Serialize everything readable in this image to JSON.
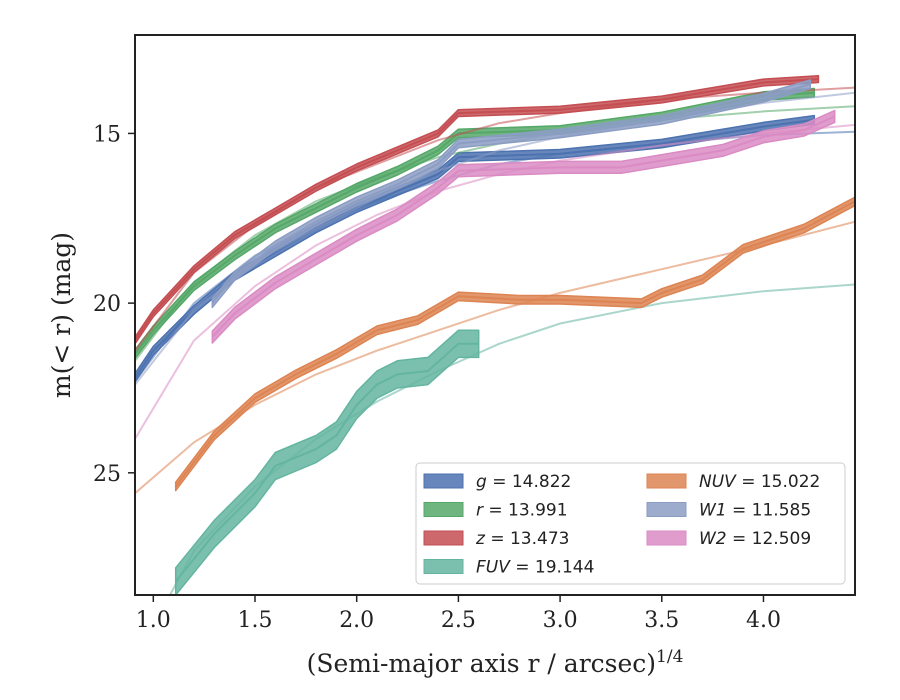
{
  "chart_data": {
    "type": "line",
    "title": "",
    "xlabel": "(Semi-major axis r / arcsec)",
    "xlabel_sup": "1/4",
    "ylabel": "m(< r) (mag)",
    "xlim": [
      0.91,
      4.45
    ],
    "ylim": [
      28.6,
      12.1
    ],
    "y_inverted": true,
    "x_ticks": [
      "1.0",
      "1.5",
      "2.0",
      "2.5",
      "3.0",
      "3.5",
      "4.0"
    ],
    "y_ticks": [
      "15",
      "20",
      "25"
    ],
    "grid": false,
    "legend_position": "lower-right",
    "legend_columns": 2,
    "series": [
      {
        "name": "g = 14.822",
        "band": "g",
        "value": "14.822",
        "color": "#4c72b0",
        "band_width": 0.25,
        "data": [
          [
            0.91,
            22.2
          ],
          [
            1.0,
            21.4
          ],
          [
            1.2,
            20.2
          ],
          [
            1.4,
            19.2
          ],
          [
            1.6,
            18.5
          ],
          [
            1.8,
            17.8
          ],
          [
            2.0,
            17.2
          ],
          [
            2.2,
            16.7
          ],
          [
            2.4,
            16.2
          ],
          [
            2.5,
            15.7
          ],
          [
            3.0,
            15.6
          ],
          [
            3.5,
            15.3
          ],
          [
            4.0,
            14.8
          ],
          [
            4.25,
            14.6
          ]
        ],
        "model": [
          [
            0.91,
            22.3
          ],
          [
            1.2,
            20.0
          ],
          [
            1.5,
            18.6
          ],
          [
            1.8,
            17.7
          ],
          [
            2.1,
            17.0
          ],
          [
            2.4,
            16.4
          ],
          [
            2.7,
            15.9
          ],
          [
            3.0,
            15.6
          ],
          [
            3.5,
            15.3
          ],
          [
            4.0,
            15.05
          ],
          [
            4.45,
            14.95
          ]
        ]
      },
      {
        "name": "r = 13.991",
        "band": "r",
        "value": "13.991",
        "color": "#55a868",
        "band_width": 0.25,
        "data": [
          [
            0.91,
            21.5
          ],
          [
            1.0,
            20.8
          ],
          [
            1.2,
            19.5
          ],
          [
            1.4,
            18.6
          ],
          [
            1.6,
            17.8
          ],
          [
            1.8,
            17.2
          ],
          [
            2.0,
            16.6
          ],
          [
            2.2,
            16.1
          ],
          [
            2.4,
            15.5
          ],
          [
            2.5,
            15.0
          ],
          [
            3.0,
            14.9
          ],
          [
            3.5,
            14.5
          ],
          [
            4.0,
            13.9
          ],
          [
            4.25,
            13.8
          ]
        ],
        "model": [
          [
            0.91,
            21.7
          ],
          [
            1.2,
            19.4
          ],
          [
            1.5,
            18.0
          ],
          [
            1.8,
            17.0
          ],
          [
            2.1,
            16.3
          ],
          [
            2.4,
            15.7
          ],
          [
            2.7,
            15.3
          ],
          [
            3.0,
            15.0
          ],
          [
            3.5,
            14.6
          ],
          [
            4.0,
            14.35
          ],
          [
            4.45,
            14.2
          ]
        ]
      },
      {
        "name": "z = 13.473",
        "band": "z",
        "value": "13.473",
        "color": "#c44e52",
        "band_width": 0.2,
        "data": [
          [
            0.91,
            21.1
          ],
          [
            1.0,
            20.3
          ],
          [
            1.2,
            19.0
          ],
          [
            1.4,
            18.0
          ],
          [
            1.6,
            17.3
          ],
          [
            1.8,
            16.6
          ],
          [
            2.0,
            16.0
          ],
          [
            2.2,
            15.5
          ],
          [
            2.4,
            15.0
          ],
          [
            2.5,
            14.4
          ],
          [
            3.0,
            14.3
          ],
          [
            3.5,
            14.0
          ],
          [
            4.0,
            13.5
          ],
          [
            4.27,
            13.4
          ]
        ],
        "model": [
          [
            0.91,
            21.4
          ],
          [
            1.2,
            19.1
          ],
          [
            1.5,
            17.7
          ],
          [
            1.8,
            16.6
          ],
          [
            2.1,
            15.9
          ],
          [
            2.4,
            15.2
          ],
          [
            2.7,
            14.7
          ],
          [
            3.0,
            14.4
          ],
          [
            3.5,
            14.0
          ],
          [
            4.0,
            13.8
          ],
          [
            4.45,
            13.65
          ]
        ]
      },
      {
        "name": "FUV = 19.144",
        "band": "FUV",
        "value": "19.144",
        "color": "#64b5a0",
        "band_width": 0.8,
        "data": [
          [
            1.11,
            28.2
          ],
          [
            1.3,
            26.8
          ],
          [
            1.5,
            25.6
          ],
          [
            1.6,
            24.8
          ],
          [
            1.8,
            24.3
          ],
          [
            1.9,
            23.9
          ],
          [
            2.0,
            23.0
          ],
          [
            2.1,
            22.4
          ],
          [
            2.2,
            22.1
          ],
          [
            2.35,
            22.0
          ],
          [
            2.5,
            21.2
          ],
          [
            2.6,
            21.2
          ]
        ],
        "model": [
          [
            1.0,
            29.5
          ],
          [
            1.2,
            27.3
          ],
          [
            1.5,
            25.4
          ],
          [
            1.8,
            24.0
          ],
          [
            2.1,
            22.9
          ],
          [
            2.4,
            22.0
          ],
          [
            2.7,
            21.2
          ],
          [
            3.0,
            20.6
          ],
          [
            3.5,
            20.0
          ],
          [
            4.0,
            19.65
          ],
          [
            4.45,
            19.45
          ]
        ]
      },
      {
        "name": "NUV = 15.022",
        "band": "NUV",
        "value": "15.022",
        "color": "#dd8452",
        "band_width": 0.25,
        "data": [
          [
            1.11,
            25.4
          ],
          [
            1.3,
            23.9
          ],
          [
            1.5,
            22.8
          ],
          [
            1.7,
            22.1
          ],
          [
            1.9,
            21.5
          ],
          [
            2.1,
            20.8
          ],
          [
            2.3,
            20.5
          ],
          [
            2.5,
            19.8
          ],
          [
            2.8,
            19.9
          ],
          [
            3.0,
            19.9
          ],
          [
            3.4,
            20.0
          ],
          [
            3.5,
            19.7
          ],
          [
            3.7,
            19.3
          ],
          [
            3.9,
            18.4
          ],
          [
            4.0,
            18.2
          ],
          [
            4.2,
            17.8
          ],
          [
            4.45,
            17.0
          ]
        ],
        "model": [
          [
            0.91,
            25.6
          ],
          [
            1.2,
            24.1
          ],
          [
            1.5,
            23.0
          ],
          [
            1.8,
            22.1
          ],
          [
            2.1,
            21.4
          ],
          [
            2.4,
            20.8
          ],
          [
            2.7,
            20.2
          ],
          [
            3.0,
            19.7
          ],
          [
            3.5,
            19.0
          ],
          [
            4.0,
            18.3
          ],
          [
            4.45,
            17.6
          ]
        ]
      },
      {
        "name": "W1 = 11.585",
        "band": "W1",
        "value": "11.585",
        "color": "#8c9dc4",
        "band_width": 0.25,
        "data": [
          [
            1.29,
            20.0
          ],
          [
            1.4,
            19.2
          ],
          [
            1.6,
            18.3
          ],
          [
            1.8,
            17.6
          ],
          [
            2.0,
            17.0
          ],
          [
            2.2,
            16.5
          ],
          [
            2.4,
            15.9
          ],
          [
            2.5,
            15.3
          ],
          [
            3.0,
            15.0
          ],
          [
            3.5,
            14.6
          ],
          [
            4.0,
            13.95
          ],
          [
            4.23,
            13.55
          ]
        ],
        "model": [
          [
            0.91,
            22.4
          ],
          [
            1.2,
            20.2
          ],
          [
            1.5,
            18.8
          ],
          [
            1.8,
            17.8
          ],
          [
            2.1,
            16.9
          ],
          [
            2.4,
            16.1
          ],
          [
            2.7,
            15.5
          ],
          [
            3.0,
            15.1
          ],
          [
            3.5,
            14.6
          ],
          [
            4.0,
            14.1
          ],
          [
            4.45,
            13.8
          ]
        ]
      },
      {
        "name": "W2 = 12.509",
        "band": "W2",
        "value": "12.509",
        "color": "#da8bc3",
        "band_width": 0.35,
        "data": [
          [
            1.29,
            21.0
          ],
          [
            1.4,
            20.3
          ],
          [
            1.6,
            19.4
          ],
          [
            1.8,
            18.7
          ],
          [
            2.0,
            18.0
          ],
          [
            2.2,
            17.4
          ],
          [
            2.4,
            16.6
          ],
          [
            2.5,
            16.1
          ],
          [
            3.0,
            16.0
          ],
          [
            3.3,
            16.0
          ],
          [
            3.6,
            15.7
          ],
          [
            3.8,
            15.5
          ],
          [
            4.0,
            15.1
          ],
          [
            4.2,
            14.9
          ],
          [
            4.35,
            14.5
          ]
        ],
        "model": [
          [
            0.91,
            24.0
          ],
          [
            1.2,
            21.1
          ],
          [
            1.5,
            19.5
          ],
          [
            1.8,
            18.3
          ],
          [
            2.1,
            17.4
          ],
          [
            2.4,
            16.7
          ],
          [
            2.7,
            16.2
          ],
          [
            3.0,
            15.8
          ],
          [
            3.5,
            15.35
          ],
          [
            4.0,
            15.0
          ],
          [
            4.45,
            14.75
          ]
        ]
      }
    ]
  }
}
